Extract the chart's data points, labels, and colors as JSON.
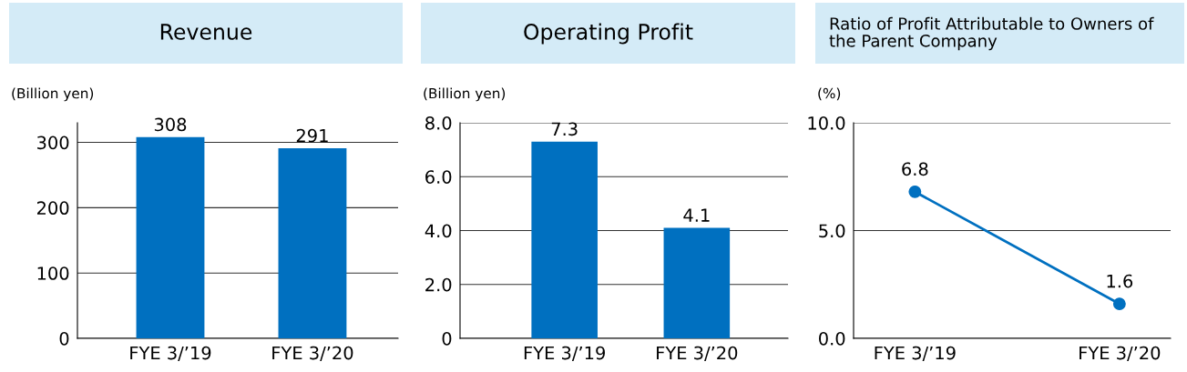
{
  "chart_data": [
    {
      "type": "bar",
      "title": "Revenue",
      "ylabel": "(Billion yen)",
      "categories": [
        "FYE 3/’19",
        "FYE 3/’20"
      ],
      "values": [
        308,
        291
      ],
      "color": "#0070c0",
      "ylim": [
        0,
        330
      ],
      "yticks": [
        0,
        100,
        200,
        300
      ],
      "grid": "y",
      "data_labels": true
    },
    {
      "type": "bar",
      "title": "Operating Profit",
      "ylabel": "(Billion yen)",
      "categories": [
        "FYE 3/’19",
        "FYE 3/’20"
      ],
      "values": [
        7.3,
        4.1
      ],
      "color": "#0070c0",
      "ylim": [
        0,
        8
      ],
      "yticks": [
        0,
        {
          "value": 2,
          "label": "2.0"
        },
        {
          "value": 4,
          "label": "4.0"
        },
        {
          "value": 6,
          "label": "6.0"
        },
        {
          "value": 8,
          "label": "8.0"
        }
      ],
      "grid": "y",
      "data_labels": true
    },
    {
      "type": "line",
      "title": "Ratio of Profit Attributable to Owners of the Parent Company",
      "ylabel": "(%)",
      "categories": [
        "FYE 3/’19",
        "FYE 3/’20"
      ],
      "values": [
        6.8,
        1.6
      ],
      "color": "#0070c0",
      "marker": "circle",
      "ylim": [
        0,
        10
      ],
      "yticks": [
        {
          "value": 0,
          "label": "0.0"
        },
        {
          "value": 5,
          "label": "5.0"
        },
        {
          "value": 10,
          "label": "10.0"
        }
      ],
      "grid": "y",
      "data_labels": true
    }
  ]
}
